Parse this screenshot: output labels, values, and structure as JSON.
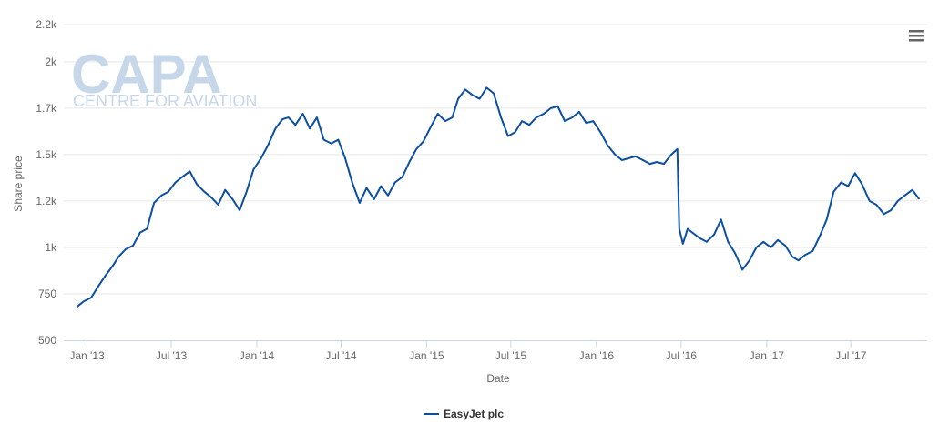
{
  "watermark": {
    "main": "CAPA",
    "sub": "CENTRE FOR AVIATION"
  },
  "menu_icon": "hamburger-menu-icon",
  "chart_data": {
    "type": "line",
    "title": "",
    "xlabel": "Date",
    "ylabel": "Share price",
    "ylim": [
      500,
      2200
    ],
    "yticks": [
      500,
      750,
      1000,
      1250,
      1500,
      1750,
      2000,
      2200
    ],
    "ytick_labels": [
      "500",
      "750",
      "1k",
      "1.2k",
      "1.5k",
      "1.7k",
      "2k",
      "2.2k"
    ],
    "xlim": [
      "2012-11-12",
      "2017-12-12"
    ],
    "xticks": [
      "2013-01-01",
      "2013-07-01",
      "2014-01-01",
      "2014-07-01",
      "2015-01-01",
      "2015-07-01",
      "2016-01-01",
      "2016-07-01",
      "2017-01-01",
      "2017-07-01"
    ],
    "xtick_labels": [
      "Jan '13",
      "Jul '13",
      "Jan '14",
      "Jul '14",
      "Jan '15",
      "Jul '15",
      "Jan '16",
      "Jul '16",
      "Jan '17",
      "Jul '17"
    ],
    "grid": "horizontal",
    "legend": "bottom-center",
    "series": [
      {
        "name": "EasyJet plc",
        "color": "#0b4ea2",
        "points": [
          [
            "2012-12-10",
            680
          ],
          [
            "2012-12-25",
            710
          ],
          [
            "2013-01-10",
            730
          ],
          [
            "2013-01-25",
            790
          ],
          [
            "2013-02-10",
            850
          ],
          [
            "2013-02-25",
            900
          ],
          [
            "2013-03-10",
            950
          ],
          [
            "2013-03-25",
            990
          ],
          [
            "2013-04-10",
            1010
          ],
          [
            "2013-04-25",
            1080
          ],
          [
            "2013-05-10",
            1100
          ],
          [
            "2013-05-25",
            1240
          ],
          [
            "2013-06-10",
            1280
          ],
          [
            "2013-06-25",
            1300
          ],
          [
            "2013-07-10",
            1350
          ],
          [
            "2013-07-25",
            1380
          ],
          [
            "2013-08-10",
            1410
          ],
          [
            "2013-08-25",
            1340
          ],
          [
            "2013-09-10",
            1300
          ],
          [
            "2013-09-25",
            1270
          ],
          [
            "2013-10-10",
            1230
          ],
          [
            "2013-10-25",
            1310
          ],
          [
            "2013-11-10",
            1260
          ],
          [
            "2013-11-25",
            1200
          ],
          [
            "2013-12-10",
            1300
          ],
          [
            "2013-12-25",
            1420
          ],
          [
            "2014-01-10",
            1480
          ],
          [
            "2014-01-25",
            1550
          ],
          [
            "2014-02-10",
            1640
          ],
          [
            "2014-02-25",
            1690
          ],
          [
            "2014-03-10",
            1700
          ],
          [
            "2014-03-25",
            1660
          ],
          [
            "2014-04-10",
            1720
          ],
          [
            "2014-04-25",
            1640
          ],
          [
            "2014-05-10",
            1700
          ],
          [
            "2014-05-25",
            1580
          ],
          [
            "2014-06-10",
            1560
          ],
          [
            "2014-06-25",
            1580
          ],
          [
            "2014-07-10",
            1480
          ],
          [
            "2014-07-25",
            1350
          ],
          [
            "2014-08-10",
            1240
          ],
          [
            "2014-08-25",
            1320
          ],
          [
            "2014-09-10",
            1260
          ],
          [
            "2014-09-25",
            1330
          ],
          [
            "2014-10-10",
            1280
          ],
          [
            "2014-10-25",
            1350
          ],
          [
            "2014-11-10",
            1380
          ],
          [
            "2014-11-25",
            1460
          ],
          [
            "2014-12-10",
            1530
          ],
          [
            "2014-12-25",
            1570
          ],
          [
            "2015-01-10",
            1650
          ],
          [
            "2015-01-25",
            1720
          ],
          [
            "2015-02-10",
            1680
          ],
          [
            "2015-02-25",
            1700
          ],
          [
            "2015-03-10",
            1800
          ],
          [
            "2015-03-25",
            1850
          ],
          [
            "2015-04-10",
            1820
          ],
          [
            "2015-04-25",
            1800
          ],
          [
            "2015-05-10",
            1860
          ],
          [
            "2015-05-25",
            1830
          ],
          [
            "2015-06-10",
            1700
          ],
          [
            "2015-06-25",
            1600
          ],
          [
            "2015-07-10",
            1620
          ],
          [
            "2015-07-25",
            1680
          ],
          [
            "2015-08-10",
            1660
          ],
          [
            "2015-08-25",
            1700
          ],
          [
            "2015-09-10",
            1720
          ],
          [
            "2015-09-25",
            1750
          ],
          [
            "2015-10-10",
            1760
          ],
          [
            "2015-10-25",
            1680
          ],
          [
            "2015-11-10",
            1700
          ],
          [
            "2015-11-25",
            1730
          ],
          [
            "2015-12-10",
            1670
          ],
          [
            "2015-12-25",
            1680
          ],
          [
            "2016-01-10",
            1620
          ],
          [
            "2016-01-25",
            1550
          ],
          [
            "2016-02-10",
            1500
          ],
          [
            "2016-02-25",
            1470
          ],
          [
            "2016-03-10",
            1480
          ],
          [
            "2016-03-25",
            1490
          ],
          [
            "2016-04-10",
            1470
          ],
          [
            "2016-04-25",
            1450
          ],
          [
            "2016-05-10",
            1460
          ],
          [
            "2016-05-25",
            1450
          ],
          [
            "2016-06-10",
            1500
          ],
          [
            "2016-06-23",
            1530
          ],
          [
            "2016-06-27",
            1100
          ],
          [
            "2016-07-05",
            1020
          ],
          [
            "2016-07-15",
            1100
          ],
          [
            "2016-07-25",
            1080
          ],
          [
            "2016-08-10",
            1050
          ],
          [
            "2016-08-25",
            1030
          ],
          [
            "2016-09-10",
            1070
          ],
          [
            "2016-09-25",
            1150
          ],
          [
            "2016-10-10",
            1030
          ],
          [
            "2016-10-25",
            970
          ],
          [
            "2016-11-10",
            880
          ],
          [
            "2016-11-25",
            930
          ],
          [
            "2016-12-10",
            1000
          ],
          [
            "2016-12-25",
            1030
          ],
          [
            "2017-01-10",
            1000
          ],
          [
            "2017-01-25",
            1040
          ],
          [
            "2017-02-10",
            1010
          ],
          [
            "2017-02-25",
            950
          ],
          [
            "2017-03-10",
            930
          ],
          [
            "2017-03-25",
            960
          ],
          [
            "2017-04-10",
            980
          ],
          [
            "2017-04-25",
            1060
          ],
          [
            "2017-05-10",
            1150
          ],
          [
            "2017-05-25",
            1300
          ],
          [
            "2017-06-10",
            1350
          ],
          [
            "2017-06-25",
            1330
          ],
          [
            "2017-07-10",
            1400
          ],
          [
            "2017-07-25",
            1340
          ],
          [
            "2017-08-10",
            1250
          ],
          [
            "2017-08-25",
            1230
          ],
          [
            "2017-09-10",
            1180
          ],
          [
            "2017-09-25",
            1200
          ],
          [
            "2017-10-10",
            1250
          ],
          [
            "2017-10-25",
            1280
          ],
          [
            "2017-11-10",
            1310
          ],
          [
            "2017-11-25",
            1260
          ]
        ]
      }
    ]
  }
}
